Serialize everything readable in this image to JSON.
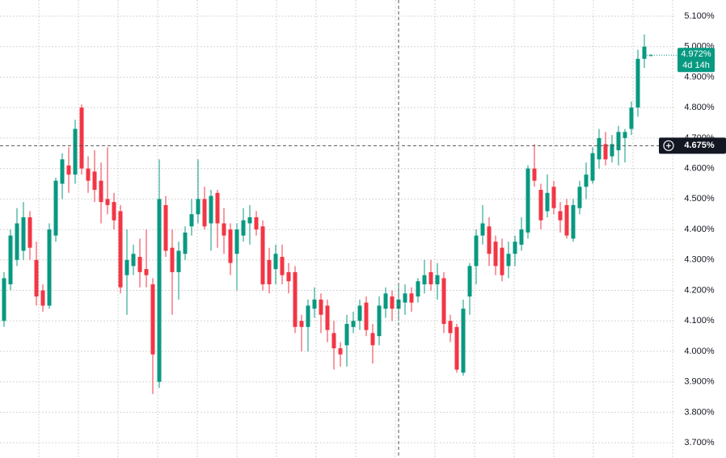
{
  "chart_data": {
    "type": "candlestick",
    "open": [
      4.1,
      4.22,
      4.3,
      4.33,
      4.44,
      4.3,
      4.2,
      4.15,
      4.38,
      4.55,
      4.61,
      4.58,
      4.8,
      4.6,
      4.59,
      4.56,
      4.5,
      4.49,
      4.46,
      4.25,
      4.28,
      4.31,
      4.27,
      4.22,
      3.9,
      4.48,
      4.34,
      4.26,
      4.32,
      4.41,
      4.45,
      4.5,
      4.42,
      4.52,
      4.42,
      4.4,
      4.32,
      4.38,
      4.42,
      4.44,
      4.41,
      4.3,
      4.27,
      4.31,
      4.26,
      4.26,
      4.1,
      4.08,
      4.14,
      4.17,
      4.15,
      4.06,
      4.01,
      4.02,
      4.08,
      4.1,
      4.16,
      4.06,
      4.05,
      4.14,
      4.18,
      4.14,
      4.16,
      4.19,
      4.18,
      4.22,
      4.26,
      4.22,
      4.24,
      4.1,
      4.08,
      3.93,
      4.18,
      4.28,
      4.38,
      4.41,
      4.36,
      4.34,
      4.28,
      4.32,
      4.35,
      4.39,
      4.6,
      4.53,
      4.46,
      4.54,
      4.46,
      4.48,
      4.37,
      4.47,
      4.54,
      4.56,
      4.63,
      4.68,
      4.64,
      4.66,
      4.7,
      4.73,
      4.8,
      4.96,
      4.97
    ],
    "high": [
      4.26,
      4.4,
      4.47,
      4.49,
      4.46,
      4.36,
      4.22,
      4.42,
      4.57,
      4.65,
      4.67,
      4.76,
      4.81,
      4.64,
      4.66,
      4.62,
      4.67,
      4.52,
      4.48,
      4.4,
      4.35,
      4.37,
      4.4,
      4.24,
      4.63,
      4.51,
      4.4,
      4.36,
      4.41,
      4.5,
      4.63,
      4.54,
      4.53,
      4.53,
      4.47,
      4.42,
      4.42,
      4.47,
      4.48,
      4.46,
      4.43,
      4.34,
      4.35,
      4.35,
      4.29,
      4.28,
      4.12,
      4.17,
      4.21,
      4.19,
      4.17,
      4.1,
      4.03,
      4.12,
      4.13,
      4.17,
      4.18,
      4.09,
      4.18,
      4.21,
      4.2,
      4.22,
      4.22,
      4.21,
      4.24,
      4.3,
      4.3,
      4.29,
      4.26,
      4.12,
      4.09,
      4.17,
      4.29,
      4.4,
      4.48,
      4.44,
      4.38,
      4.37,
      4.36,
      4.38,
      4.44,
      4.61,
      4.68,
      4.55,
      4.58,
      4.56,
      4.49,
      4.5,
      4.5,
      4.56,
      4.62,
      4.67,
      4.73,
      4.72,
      4.71,
      4.74,
      4.73,
      4.82,
      4.99,
      5.04,
      4.975
    ],
    "low": [
      4.08,
      4.2,
      4.28,
      4.3,
      4.3,
      4.15,
      4.13,
      4.14,
      4.36,
      4.5,
      4.52,
      4.55,
      4.58,
      4.52,
      4.49,
      4.42,
      4.45,
      4.4,
      4.19,
      4.12,
      4.25,
      4.21,
      4.21,
      3.86,
      3.88,
      4.31,
      4.12,
      4.17,
      4.3,
      4.38,
      4.42,
      4.4,
      4.33,
      4.34,
      4.32,
      4.25,
      4.2,
      4.36,
      4.35,
      4.38,
      4.2,
      4.19,
      4.22,
      4.22,
      4.19,
      4.06,
      4.0,
      4.0,
      4.11,
      4.06,
      4.03,
      3.94,
      3.95,
      3.95,
      4.06,
      4.07,
      4.05,
      3.96,
      4.02,
      4.11,
      4.1,
      4.1,
      4.12,
      4.13,
      4.16,
      4.19,
      4.2,
      4.17,
      4.06,
      4.03,
      3.93,
      3.92,
      4.12,
      4.22,
      4.35,
      4.28,
      4.25,
      4.23,
      4.24,
      4.28,
      4.33,
      4.37,
      4.54,
      4.4,
      4.44,
      4.45,
      4.39,
      4.37,
      4.36,
      4.45,
      4.5,
      4.55,
      4.6,
      4.61,
      4.62,
      4.61,
      4.62,
      4.71,
      4.77,
      4.93,
      4.968
    ],
    "close": [
      4.24,
      4.38,
      4.42,
      4.44,
      4.34,
      4.18,
      4.15,
      4.4,
      4.56,
      4.63,
      4.58,
      4.73,
      4.6,
      4.56,
      4.53,
      4.49,
      4.48,
      4.43,
      4.21,
      4.3,
      4.32,
      4.26,
      4.25,
      3.99,
      4.5,
      4.33,
      4.26,
      4.33,
      4.39,
      4.45,
      4.5,
      4.41,
      4.51,
      4.42,
      4.38,
      4.29,
      4.4,
      4.43,
      4.44,
      4.4,
      4.22,
      4.22,
      4.32,
      4.25,
      4.23,
      4.08,
      4.08,
      4.15,
      4.17,
      4.12,
      4.07,
      4.01,
      3.99,
      4.09,
      4.1,
      4.15,
      4.07,
      4.02,
      4.15,
      4.19,
      4.14,
      4.17,
      4.19,
      4.16,
      4.23,
      4.25,
      4.22,
      4.25,
      4.09,
      4.06,
      3.94,
      4.14,
      4.28,
      4.38,
      4.42,
      4.32,
      4.28,
      4.25,
      4.32,
      4.36,
      4.4,
      4.6,
      4.56,
      4.43,
      4.52,
      4.47,
      4.43,
      4.38,
      4.48,
      4.54,
      4.58,
      4.65,
      4.7,
      4.63,
      4.68,
      4.72,
      4.72,
      4.8,
      4.96,
      5.0,
      4.972
    ],
    "up_color": "#089981",
    "down_color": "#f23645",
    "ylim": [
      3.65,
      5.153
    ],
    "yticks": [
      {
        "value": 5.1,
        "label": "5.100%"
      },
      {
        "value": 5.0,
        "label": "5.000%"
      },
      {
        "value": 4.9,
        "label": "4.900%"
      },
      {
        "value": 4.8,
        "label": "4.800%"
      },
      {
        "value": 4.7,
        "label": "4.700%"
      },
      {
        "value": 4.6,
        "label": "4.600%"
      },
      {
        "value": 4.5,
        "label": "4.500%"
      },
      {
        "value": 4.4,
        "label": "4.400%"
      },
      {
        "value": 4.3,
        "label": "4.300%"
      },
      {
        "value": 4.2,
        "label": "4.200%"
      },
      {
        "value": 4.1,
        "label": "4.100%"
      },
      {
        "value": 4.0,
        "label": "4.000%"
      },
      {
        "value": 3.9,
        "label": "3.900%"
      },
      {
        "value": 3.8,
        "label": "3.800%"
      },
      {
        "value": 3.7,
        "label": "3.700%"
      }
    ],
    "grid": true,
    "last_price": {
      "value": 4.972,
      "label": "4.972%",
      "countdown": "4d 14h"
    },
    "crosshair": {
      "value": 4.675,
      "label": "4.675%"
    }
  }
}
